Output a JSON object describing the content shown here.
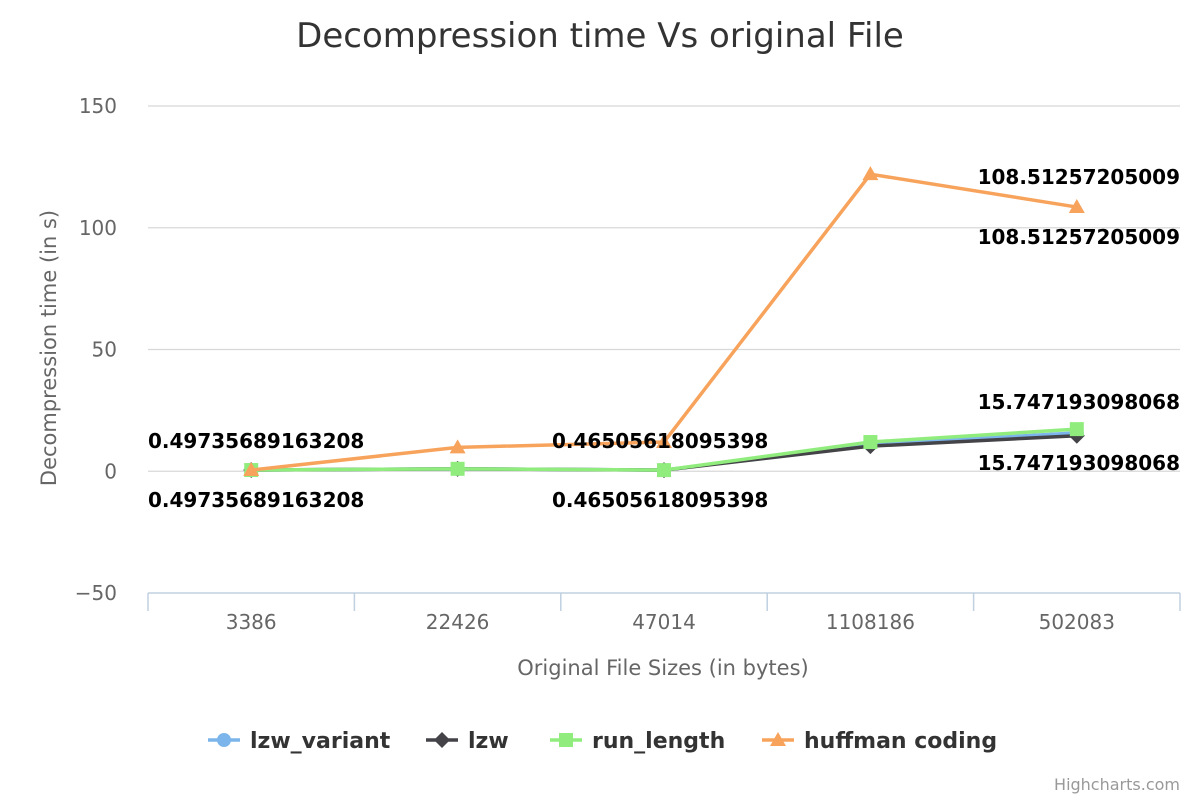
{
  "chart_data": {
    "type": "line",
    "title": "Decompression time Vs original File",
    "xlabel": "Original File Sizes (in bytes)",
    "ylabel": "Decompression time (in s)",
    "categories": [
      "3386",
      "22426",
      "47014",
      "1108186",
      "502083"
    ],
    "ylim": [
      -50,
      150
    ],
    "yticks": [
      -50,
      0,
      50,
      100,
      150
    ],
    "grid": true,
    "legend_position": "bottom-center",
    "series": [
      {
        "name": "lzw_variant",
        "color": "#7cb5ec",
        "marker": "circle",
        "values": [
          0.5,
          1.0,
          0.47,
          11.0,
          15.75
        ]
      },
      {
        "name": "lzw",
        "color": "#434348",
        "marker": "diamond",
        "values": [
          0.5,
          1.0,
          0.47,
          10.3,
          14.6
        ]
      },
      {
        "name": "run_length",
        "color": "#90ed7d",
        "marker": "square",
        "values": [
          0.5,
          1.0,
          0.47,
          12.0,
          17.3
        ]
      },
      {
        "name": "huffman coding",
        "color": "#f7a35c",
        "marker": "triangle",
        "values": [
          0.5,
          9.8,
          12.0,
          122.0,
          108.5
        ]
      }
    ],
    "data_labels": [
      {
        "category_index": 0,
        "text": "0.49735689163208"
      },
      {
        "category_index": 0,
        "text": "0.49735689163208"
      },
      {
        "category_index": 2,
        "text": "0.46505618095398"
      },
      {
        "category_index": 2,
        "text": "0.46505618095398"
      },
      {
        "category_index": 4,
        "text": "108.51257205009"
      },
      {
        "category_index": 4,
        "text": "108.51257205009"
      },
      {
        "category_index": 4,
        "text": "15.747193098068"
      },
      {
        "category_index": 4,
        "text": "15.747193098068"
      }
    ]
  },
  "credits": "Highcharts.com"
}
